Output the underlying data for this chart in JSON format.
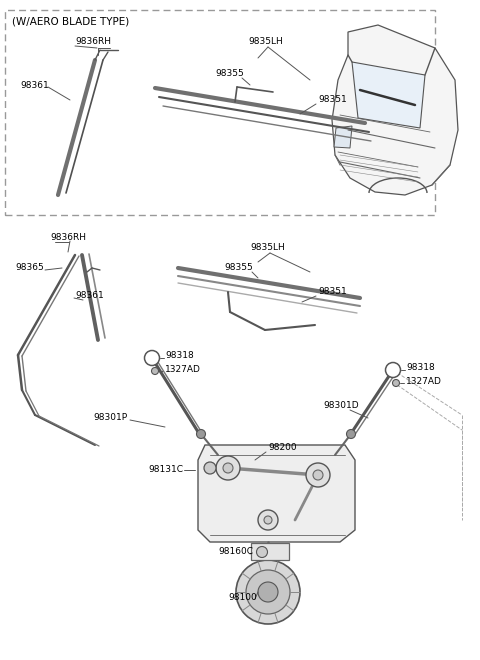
{
  "bg_color": "#ffffff",
  "line_color": "#404040",
  "aero_box_label": "(W/AERO BLADE TYPE)",
  "parts": {
    "9836RH_top": "9836RH",
    "98361_top": "98361",
    "9835LH_top": "9835LH",
    "98355_top": "98355",
    "98351_top": "98351",
    "9836RH_bot": "9836RH",
    "98365": "98365",
    "98361_bot": "98361",
    "9835LH_bot": "9835LH",
    "98355_bot": "98355",
    "98351_bot": "98351",
    "98318_left": "98318",
    "1327AD_left": "1327AD",
    "98301P": "98301P",
    "98318_right": "98318",
    "1327AD_right": "1327AD",
    "98301D": "98301D",
    "98131C": "98131C",
    "98200": "98200",
    "98160C": "98160C",
    "98100": "98100"
  }
}
